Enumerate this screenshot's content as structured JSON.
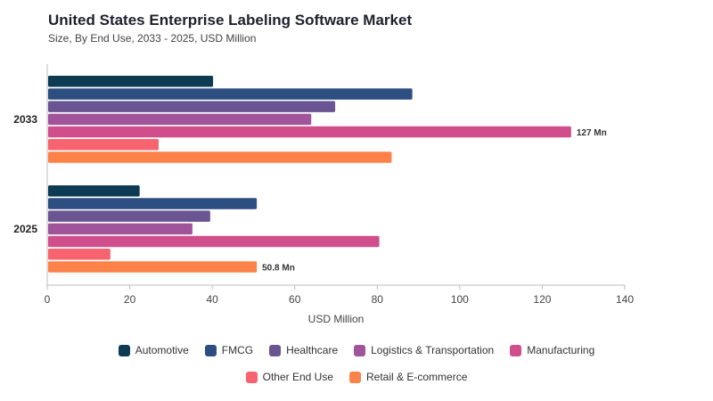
{
  "title": "United States Enterprise Labeling Software Market",
  "subtitle": "Size, By End Use, 2033 - 2025, USD Million",
  "chart_data": {
    "type": "bar",
    "orientation": "horizontal",
    "categories": [
      "2033",
      "2025"
    ],
    "xlabel": "USD Million",
    "xlim": [
      0,
      140
    ],
    "xticks": [
      "0",
      "20",
      "40",
      "60",
      "80",
      "100",
      "120",
      "140"
    ],
    "grid": false,
    "legend_position": "bottom",
    "series": [
      {
        "name": "Automotive",
        "color": "#0d3b53",
        "values": [
          40.2,
          22.4
        ]
      },
      {
        "name": "FMCG",
        "color": "#2d4e80",
        "values": [
          88.5,
          50.8
        ]
      },
      {
        "name": "Healthcare",
        "color": "#6a5592",
        "values": [
          69.8,
          39.5
        ]
      },
      {
        "name": "Logistics & Transportation",
        "color": "#a0549a",
        "values": [
          64.0,
          35.2
        ]
      },
      {
        "name": "Manufacturing",
        "color": "#d04e8c",
        "values": [
          127,
          80.5
        ]
      },
      {
        "name": "Other End Use",
        "color": "#f7636f",
        "values": [
          27.0,
          15.3
        ]
      },
      {
        "name": "Retail & E-commerce",
        "color": "#fd8249",
        "values": [
          83.5,
          50.8
        ]
      }
    ],
    "annotations": [
      {
        "category": "2033",
        "series": "Manufacturing",
        "text": "127 Mn"
      },
      {
        "category": "2025",
        "series": "Retail & E-commerce",
        "text": "50.8 Mn"
      }
    ]
  }
}
